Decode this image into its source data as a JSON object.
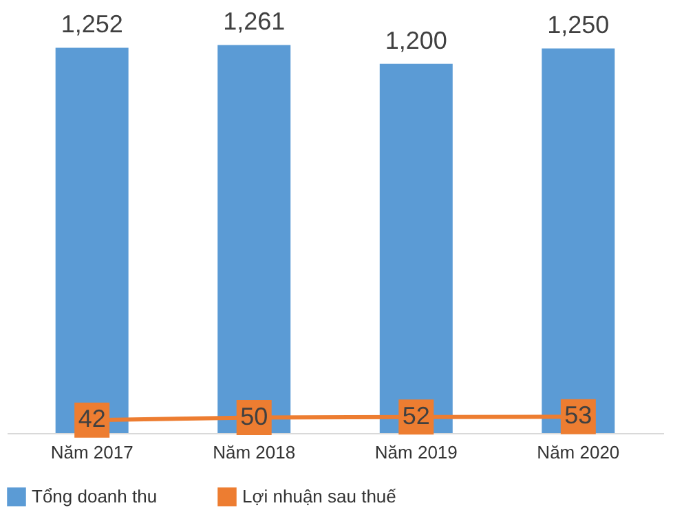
{
  "chart_data": {
    "type": "bar",
    "categories": [
      "Năm 2017",
      "Năm 2018",
      "Năm 2019",
      "Năm 2020"
    ],
    "series": [
      {
        "name": "Tổng doanh thu",
        "color": "#5b9bd5",
        "values": [
          1252,
          1261,
          1200,
          1250
        ],
        "value_labels": [
          "1,252",
          "1,261",
          "1,200",
          "1,250"
        ]
      },
      {
        "name": "Lợi nhuận sau thuế",
        "type": "line",
        "color": "#ed7d31",
        "values": [
          42,
          50,
          52,
          53
        ],
        "marker": "square"
      }
    ],
    "data_labels": true,
    "legend": "bottom",
    "tick_labels": "x"
  }
}
